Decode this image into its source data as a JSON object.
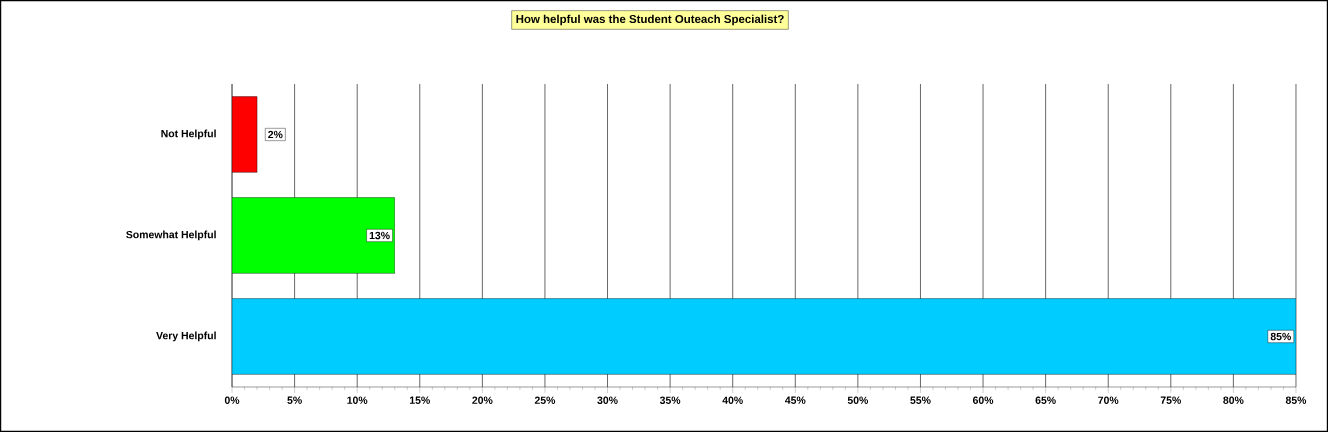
{
  "chart_data": {
    "type": "bar",
    "orientation": "horizontal",
    "title": "How helpful was the Student Outeach Specialist?",
    "categories": [
      "Not Helpful",
      "Somewhat Helpful",
      "Very Helpful"
    ],
    "values": [
      2,
      13,
      85
    ],
    "value_labels": [
      "2%",
      "13%",
      "85%"
    ],
    "colors": [
      "#ff0000",
      "#00ff00",
      "#00ccff"
    ],
    "xlim": [
      0,
      85
    ],
    "xticks": [
      {
        "value": 0,
        "label": "0%"
      },
      {
        "value": 5,
        "label": "5%"
      },
      {
        "value": 10,
        "label": "10%"
      },
      {
        "value": 15,
        "label": "15%"
      },
      {
        "value": 20,
        "label": "20%"
      },
      {
        "value": 25,
        "label": "25%"
      },
      {
        "value": 30,
        "label": "30%"
      },
      {
        "value": 35,
        "label": "35%"
      },
      {
        "value": 40,
        "label": "40%"
      },
      {
        "value": 45,
        "label": "45%"
      },
      {
        "value": 50,
        "label": "50%"
      },
      {
        "value": 55,
        "label": "55%"
      },
      {
        "value": 60,
        "label": "60%"
      },
      {
        "value": 65,
        "label": "65%"
      },
      {
        "value": 70,
        "label": "70%"
      },
      {
        "value": 75,
        "label": "75%"
      },
      {
        "value": 80,
        "label": "80%"
      },
      {
        "value": 85,
        "label": "85%"
      }
    ],
    "grid": "x"
  }
}
